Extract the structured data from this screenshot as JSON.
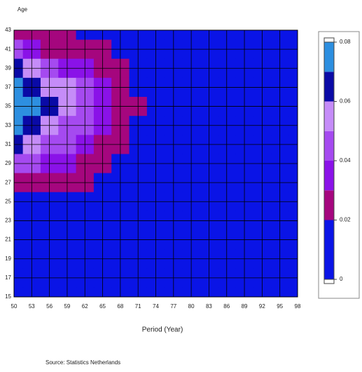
{
  "chart_data": {
    "type": "contour",
    "y_label": "Age",
    "x_label": "Period (Year)",
    "source": "Source: Statistics Netherlands",
    "x": [
      50,
      53,
      56,
      59,
      62,
      65,
      68,
      71,
      74,
      77,
      80,
      83,
      86,
      89,
      92,
      95,
      98
    ],
    "y": [
      43,
      41,
      39,
      37,
      35,
      33,
      31,
      29,
      27,
      25,
      23,
      21,
      19,
      17,
      15
    ],
    "xlim": [
      50,
      98
    ],
    "ylim": [
      15,
      43
    ],
    "xticks": [
      50,
      53,
      56,
      59,
      62,
      65,
      68,
      71,
      74,
      77,
      80,
      83,
      86,
      89,
      92,
      95,
      98
    ],
    "yticks": [
      15,
      17,
      19,
      21,
      23,
      25,
      27,
      29,
      31,
      33,
      35,
      37,
      39,
      41,
      43
    ],
    "z": [
      [
        0.025,
        0.022,
        0.021,
        0.02,
        0.015,
        0.008,
        0.005,
        0.003,
        0.002,
        0.002,
        0.002,
        0.002,
        0.002,
        0.002,
        0.002,
        0.002,
        0.002
      ],
      [
        0.04,
        0.035,
        0.028,
        0.022,
        0.021,
        0.02,
        0.01,
        0.005,
        0.002,
        0.002,
        0.002,
        0.002,
        0.002,
        0.002,
        0.002,
        0.002,
        0.002
      ],
      [
        0.06,
        0.05,
        0.045,
        0.035,
        0.03,
        0.025,
        0.021,
        0.008,
        0.002,
        0.002,
        0.002,
        0.002,
        0.002,
        0.002,
        0.002,
        0.002,
        0.002
      ],
      [
        0.075,
        0.068,
        0.055,
        0.05,
        0.04,
        0.03,
        0.022,
        0.01,
        0.002,
        0.002,
        0.002,
        0.002,
        0.002,
        0.002,
        0.002,
        0.002,
        0.002
      ],
      [
        0.078,
        0.072,
        0.065,
        0.05,
        0.04,
        0.032,
        0.022,
        0.021,
        0.002,
        0.002,
        0.002,
        0.002,
        0.002,
        0.002,
        0.002,
        0.002,
        0.002
      ],
      [
        0.075,
        0.065,
        0.055,
        0.045,
        0.04,
        0.03,
        0.021,
        0.01,
        0.002,
        0.002,
        0.002,
        0.002,
        0.002,
        0.002,
        0.002,
        0.002,
        0.002
      ],
      [
        0.06,
        0.05,
        0.045,
        0.04,
        0.035,
        0.025,
        0.021,
        0.006,
        0.002,
        0.002,
        0.002,
        0.002,
        0.002,
        0.002,
        0.002,
        0.002,
        0.002
      ],
      [
        0.045,
        0.04,
        0.035,
        0.03,
        0.025,
        0.021,
        0.01,
        0.004,
        0.002,
        0.002,
        0.002,
        0.002,
        0.002,
        0.002,
        0.002,
        0.002,
        0.002
      ],
      [
        0.025,
        0.022,
        0.022,
        0.021,
        0.021,
        0.01,
        0.005,
        0.002,
        0.002,
        0.002,
        0.002,
        0.002,
        0.002,
        0.002,
        0.002,
        0.002,
        0.002
      ],
      [
        0.004,
        0.004,
        0.003,
        0.003,
        0.003,
        0.003,
        0.002,
        0.002,
        0.002,
        0.002,
        0.002,
        0.002,
        0.002,
        0.002,
        0.002,
        0.002,
        0.002
      ],
      [
        0.003,
        0.003,
        0.003,
        0.003,
        0.003,
        0.003,
        0.002,
        0.002,
        0.002,
        0.002,
        0.002,
        0.002,
        0.002,
        0.002,
        0.002,
        0.002,
        0.002
      ],
      [
        0.003,
        0.003,
        0.003,
        0.003,
        0.003,
        0.003,
        0.002,
        0.002,
        0.002,
        0.002,
        0.002,
        0.002,
        0.002,
        0.002,
        0.002,
        0.002,
        0.002
      ],
      [
        0.003,
        0.003,
        0.003,
        0.003,
        0.003,
        0.003,
        0.002,
        0.002,
        0.002,
        0.002,
        0.002,
        0.002,
        0.002,
        0.002,
        0.002,
        0.002,
        0.002
      ],
      [
        0.003,
        0.003,
        0.003,
        0.003,
        0.003,
        0.003,
        0.002,
        0.002,
        0.002,
        0.002,
        0.002,
        0.002,
        0.002,
        0.002,
        0.002,
        0.002,
        0.002
      ],
      [
        0.003,
        0.003,
        0.003,
        0.003,
        0.003,
        0.003,
        0.002,
        0.002,
        0.002,
        0.002,
        0.002,
        0.002,
        0.002,
        0.002,
        0.002,
        0.002,
        0.002
      ]
    ],
    "levels": [
      0,
      0.02,
      0.03,
      0.04,
      0.05,
      0.06,
      0.07,
      0.08
    ],
    "colors": [
      "#0a14e6",
      "#a5067e",
      "#8a12e8",
      "#a54af0",
      "#c58cf8",
      "#0a0aa6",
      "#2d8fe0"
    ],
    "zlim": [
      0,
      0.08
    ],
    "zticks": [
      0,
      0.02,
      0.04,
      0.06,
      0.08
    ],
    "grid": true
  }
}
